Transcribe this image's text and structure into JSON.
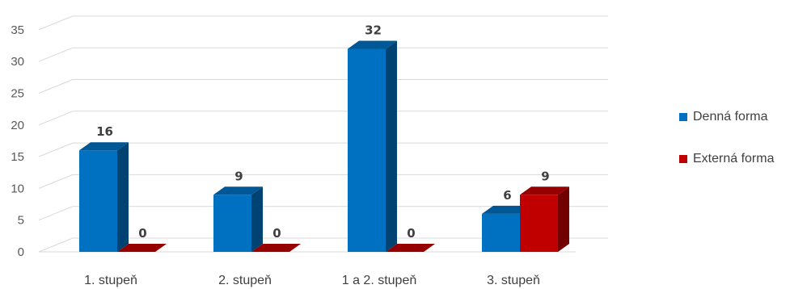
{
  "chart_data": {
    "type": "bar",
    "categories": [
      "1. stupeň",
      "2. stupeň",
      "1 a 2. stupeň",
      "3. stupeň"
    ],
    "series": [
      {
        "name": "Denná forma",
        "values": [
          16,
          9,
          32,
          6
        ],
        "color": "#0070C0"
      },
      {
        "name": "Externá forma",
        "values": [
          0,
          0,
          0,
          9
        ],
        "color": "#C00000"
      }
    ],
    "y_ticks": [
      "0",
      "5",
      "10",
      "15",
      "20",
      "25",
      "30",
      "35"
    ],
    "ylim": [
      0,
      38
    ],
    "data_labels": [
      [
        "16",
        "9",
        "32",
        "6"
      ],
      [
        "0",
        "0",
        "0",
        "9"
      ]
    ],
    "grid": true,
    "legend_position": "right",
    "style": "3d-clustered-column"
  }
}
